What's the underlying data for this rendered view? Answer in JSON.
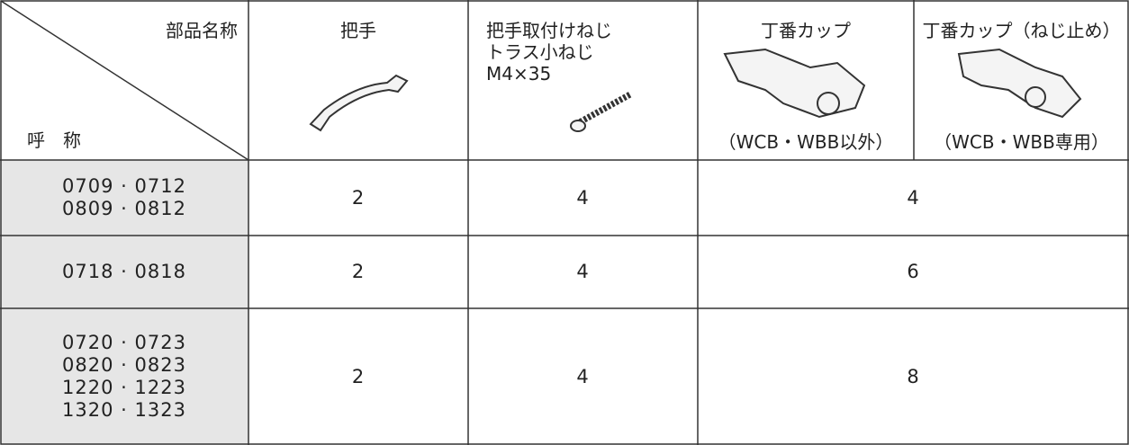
{
  "header": {
    "corner_top": "部品名称",
    "corner_bottom": "呼　称",
    "columns": [
      {
        "lines": [
          "把手"
        ]
      },
      {
        "lines": [
          "把手取付けねじ",
          "トラス小ねじ",
          "M4×35"
        ]
      },
      {
        "lines": [
          "丁番カップ"
        ],
        "note": "（WCB・WBB以外）"
      },
      {
        "lines": [
          "丁番カップ（ねじ止め）"
        ],
        "note": "（WCB・WBB専用）"
      }
    ]
  },
  "rows": [
    {
      "names": [
        "0709 · 0712",
        "0809 · 0812"
      ],
      "handle": 2,
      "screw": 4,
      "hinge": 4
    },
    {
      "names": [
        "0718 · 0818"
      ],
      "handle": 2,
      "screw": 4,
      "hinge": 6
    },
    {
      "names": [
        "0720 · 0723",
        "0820 · 0823",
        "1220 · 1223",
        "1320 · 1323"
      ],
      "handle": 2,
      "screw": 4,
      "hinge": 8
    }
  ]
}
